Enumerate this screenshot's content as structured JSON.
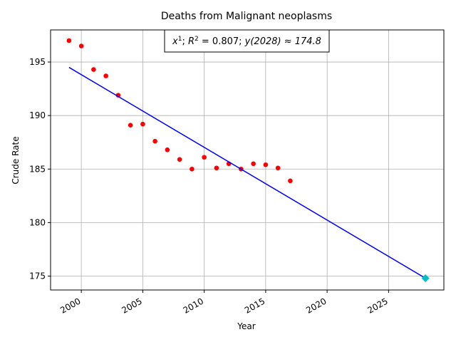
{
  "chart_data": {
    "type": "scatter",
    "title": "Deaths from Malignant neoplasms",
    "xlabel": "Year",
    "ylabel": "Crude Rate",
    "xlim": [
      1997.5,
      2029.5
    ],
    "ylim": [
      173.7,
      198.0
    ],
    "xticks": [
      2000,
      2005,
      2010,
      2015,
      2020,
      2025
    ],
    "yticks": [
      175,
      180,
      185,
      190,
      195
    ],
    "grid": true,
    "annotation": {
      "poly": "x",
      "power": "1",
      "r_prefix": "; ",
      "r_symbol": "R",
      "r_exp": "2",
      "r_value": " = 0.807; ",
      "pred": "y(2028) ≈ 174.8"
    },
    "series": [
      {
        "kind": "points",
        "color": "#ff0000",
        "x": [
          1999,
          2000,
          2001,
          2002,
          2003,
          2004,
          2005,
          2006,
          2007,
          2008,
          2009,
          2010,
          2011,
          2012,
          2013,
          2014,
          2015,
          2016,
          2017
        ],
        "y": [
          197.0,
          196.5,
          194.3,
          193.7,
          191.9,
          189.1,
          189.2,
          187.6,
          186.8,
          185.9,
          185.0,
          186.1,
          185.1,
          185.5,
          185.0,
          185.5,
          185.4,
          185.1,
          183.9
        ]
      },
      {
        "kind": "fit",
        "color": "#0000ff",
        "x": [
          1999,
          2028
        ],
        "y": [
          194.5,
          174.8
        ]
      },
      {
        "kind": "prediction",
        "color": "#00bfbf",
        "x": [
          2028
        ],
        "y": [
          174.8
        ]
      }
    ]
  }
}
